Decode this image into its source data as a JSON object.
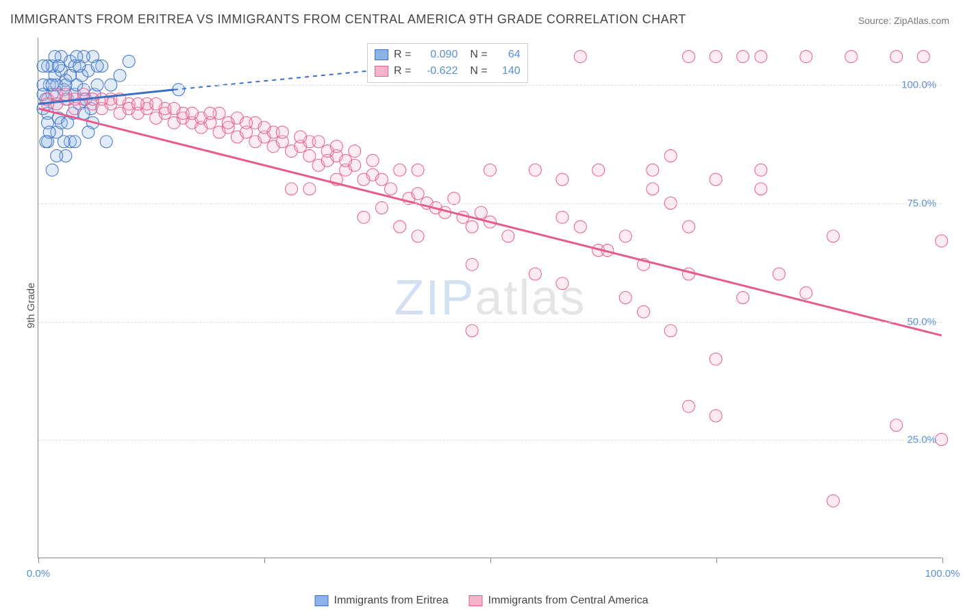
{
  "title": "IMMIGRANTS FROM ERITREA VS IMMIGRANTS FROM CENTRAL AMERICA 9TH GRADE CORRELATION CHART",
  "source_label": "Source: ZipAtlas.com",
  "ylabel": "9th Grade",
  "watermark_prefix": "ZIP",
  "watermark_suffix": "atlas",
  "chart": {
    "type": "scatter_with_regression",
    "xlim": [
      0,
      100
    ],
    "ylim": [
      0,
      110
    ],
    "yticks": [
      {
        "v": 25,
        "label": "25.0%"
      },
      {
        "v": 50,
        "label": "50.0%"
      },
      {
        "v": 75,
        "label": "75.0%"
      },
      {
        "v": 100,
        "label": "100.0%"
      }
    ],
    "xticks_minor": [
      0,
      25,
      50,
      75,
      100
    ],
    "xtick_labels": [
      {
        "v": 0,
        "label": "0.0%"
      },
      {
        "v": 100,
        "label": "100.0%"
      }
    ],
    "background_color": "#ffffff",
    "grid_color": "#dddddd",
    "marker_radius": 9,
    "marker_opacity": 0.25,
    "series": [
      {
        "name": "Immigrants from Eritrea",
        "color_fill": "#8bb3e8",
        "color_stroke": "#3a6fc7",
        "trend": {
          "x1": 0,
          "y1": 96,
          "x2": 15,
          "y2": 99,
          "dash_from_x": 15,
          "x2_dash": 53,
          "y2_dash": 106
        },
        "r": "0.090",
        "n": "64",
        "points": [
          [
            0.5,
            95
          ],
          [
            0.8,
            97
          ],
          [
            1.0,
            94
          ],
          [
            1.2,
            100
          ],
          [
            1.5,
            98
          ],
          [
            1.8,
            102
          ],
          [
            2.0,
            96
          ],
          [
            2.2,
            93
          ],
          [
            2.5,
            103
          ],
          [
            2.8,
            99
          ],
          [
            3.0,
            101
          ],
          [
            3.2,
            97
          ],
          [
            3.5,
            105
          ],
          [
            3.8,
            94
          ],
          [
            4.0,
            98
          ],
          [
            4.2,
            100
          ],
          [
            4.5,
            96
          ],
          [
            4.8,
            102
          ],
          [
            5.0,
            99
          ],
          [
            5.2,
            97
          ],
          [
            5.5,
            103
          ],
          [
            5.8,
            95
          ],
          [
            6.0,
            106
          ],
          [
            6.2,
            98
          ],
          [
            6.5,
            100
          ],
          [
            1.0,
            88
          ],
          [
            2.0,
            90
          ],
          [
            3.0,
            85
          ],
          [
            1.5,
            104
          ],
          [
            2.5,
            92
          ],
          [
            4.0,
            104
          ],
          [
            5.0,
            106
          ],
          [
            2.0,
            85
          ],
          [
            3.5,
            88
          ],
          [
            1.0,
            104
          ],
          [
            0.5,
            100
          ],
          [
            6.0,
            92
          ],
          [
            7.0,
            104
          ],
          [
            8.0,
            100
          ],
          [
            9.0,
            102
          ],
          [
            10.0,
            105
          ],
          [
            7.5,
            88
          ],
          [
            4.0,
            88
          ],
          [
            1.5,
            82
          ],
          [
            2.0,
            100
          ],
          [
            5.5,
            90
          ],
          [
            3.0,
            100
          ],
          [
            1.0,
            92
          ],
          [
            2.5,
            106
          ],
          [
            0.5,
            104
          ],
          [
            4.5,
            104
          ],
          [
            6.5,
            104
          ],
          [
            1.2,
            90
          ],
          [
            3.5,
            102
          ],
          [
            0.8,
            88
          ],
          [
            15.5,
            99
          ],
          [
            5.0,
            94
          ],
          [
            2.8,
            88
          ],
          [
            1.5,
            100
          ],
          [
            3.2,
            92
          ],
          [
            4.2,
            106
          ],
          [
            1.8,
            106
          ],
          [
            2.2,
            104
          ],
          [
            0.5,
            98
          ]
        ]
      },
      {
        "name": "Immigrants from Central America",
        "color_fill": "#f5b3c8",
        "color_stroke": "#e75a8c",
        "trend": {
          "x1": 0,
          "y1": 95,
          "x2": 100,
          "y2": 47
        },
        "r": "-0.622",
        "n": "140",
        "points": [
          [
            1,
            97
          ],
          [
            2,
            96
          ],
          [
            3,
            97
          ],
          [
            4,
            95
          ],
          [
            5,
            97
          ],
          [
            6,
            96
          ],
          [
            7,
            95
          ],
          [
            8,
            96
          ],
          [
            9,
            94
          ],
          [
            10,
            96
          ],
          [
            11,
            94
          ],
          [
            12,
            95
          ],
          [
            13,
            93
          ],
          [
            14,
            94
          ],
          [
            15,
            92
          ],
          [
            16,
            93
          ],
          [
            17,
            92
          ],
          [
            18,
            91
          ],
          [
            19,
            92
          ],
          [
            20,
            90
          ],
          [
            21,
            91
          ],
          [
            22,
            89
          ],
          [
            23,
            90
          ],
          [
            24,
            88
          ],
          [
            25,
            89
          ],
          [
            26,
            87
          ],
          [
            27,
            88
          ],
          [
            28,
            86
          ],
          [
            29,
            87
          ],
          [
            30,
            85
          ],
          [
            31,
            83
          ],
          [
            32,
            84
          ],
          [
            33,
            85
          ],
          [
            34,
            82
          ],
          [
            35,
            83
          ],
          [
            36,
            80
          ],
          [
            37,
            81
          ],
          [
            38,
            80
          ],
          [
            39,
            78
          ],
          [
            40,
            82
          ],
          [
            41,
            76
          ],
          [
            42,
            77
          ],
          [
            43,
            75
          ],
          [
            44,
            74
          ],
          [
            45,
            73
          ],
          [
            46,
            76
          ],
          [
            47,
            72
          ],
          [
            48,
            70
          ],
          [
            49,
            73
          ],
          [
            50,
            71
          ],
          [
            52,
            68
          ],
          [
            50,
            82
          ],
          [
            42,
            82
          ],
          [
            33,
            80
          ],
          [
            30,
            78
          ],
          [
            28,
            78
          ],
          [
            48,
            62
          ],
          [
            55,
            60
          ],
          [
            48,
            48
          ],
          [
            58,
            58
          ],
          [
            58,
            72
          ],
          [
            60,
            70
          ],
          [
            62,
            65
          ],
          [
            65,
            68
          ],
          [
            67,
            62
          ],
          [
            68,
            78
          ],
          [
            60,
            106
          ],
          [
            63,
            65
          ],
          [
            65,
            55
          ],
          [
            67,
            52
          ],
          [
            70,
            75
          ],
          [
            72,
            70
          ],
          [
            70,
            48
          ],
          [
            72,
            60
          ],
          [
            75,
            42
          ],
          [
            78,
            55
          ],
          [
            80,
            78
          ],
          [
            82,
            60
          ],
          [
            85,
            56
          ],
          [
            88,
            68
          ],
          [
            72,
            32
          ],
          [
            75,
            30
          ],
          [
            72,
            106
          ],
          [
            75,
            106
          ],
          [
            78,
            106
          ],
          [
            80,
            106
          ],
          [
            85,
            106
          ],
          [
            70,
            85
          ],
          [
            75,
            80
          ],
          [
            80,
            82
          ],
          [
            90,
            106
          ],
          [
            95,
            106
          ],
          [
            98,
            106
          ],
          [
            95,
            28
          ],
          [
            88,
            12
          ],
          [
            100,
            25
          ],
          [
            100,
            67
          ],
          [
            68,
            82
          ],
          [
            55,
            82
          ],
          [
            58,
            80
          ],
          [
            62,
            82
          ],
          [
            38,
            74
          ],
          [
            36,
            72
          ],
          [
            40,
            70
          ],
          [
            42,
            68
          ],
          [
            30,
            88
          ],
          [
            32,
            86
          ],
          [
            34,
            84
          ],
          [
            26,
            90
          ],
          [
            24,
            92
          ],
          [
            22,
            93
          ],
          [
            20,
            94
          ],
          [
            18,
            93
          ],
          [
            16,
            94
          ],
          [
            14,
            95
          ],
          [
            12,
            96
          ],
          [
            10,
            95
          ],
          [
            8,
            97
          ],
          [
            6,
            97
          ],
          [
            4,
            97
          ],
          [
            2,
            98
          ],
          [
            1,
            96
          ],
          [
            3,
            98
          ],
          [
            5,
            98
          ],
          [
            7,
            97
          ],
          [
            9,
            97
          ],
          [
            11,
            96
          ],
          [
            13,
            96
          ],
          [
            15,
            95
          ],
          [
            17,
            94
          ],
          [
            19,
            94
          ],
          [
            21,
            92
          ],
          [
            23,
            92
          ],
          [
            25,
            91
          ],
          [
            27,
            90
          ],
          [
            29,
            89
          ],
          [
            31,
            88
          ],
          [
            33,
            87
          ],
          [
            35,
            86
          ],
          [
            37,
            84
          ]
        ]
      }
    ]
  },
  "legend_box": {
    "rows": [
      {
        "swatch_fill": "#8bb3e8",
        "swatch_stroke": "#3a6fc7",
        "r_label": "R =",
        "r_val": "0.090",
        "n_label": "N =",
        "n_val": "64"
      },
      {
        "swatch_fill": "#f5b3c8",
        "swatch_stroke": "#e75a8c",
        "r_label": "R =",
        "r_val": "-0.622",
        "n_label": "N =",
        "n_val": "140"
      }
    ]
  },
  "bottom_legend": [
    {
      "swatch_fill": "#8bb3e8",
      "swatch_stroke": "#3a6fc7",
      "label": "Immigrants from Eritrea"
    },
    {
      "swatch_fill": "#f5b3c8",
      "swatch_stroke": "#e75a8c",
      "label": "Immigrants from Central America"
    }
  ]
}
